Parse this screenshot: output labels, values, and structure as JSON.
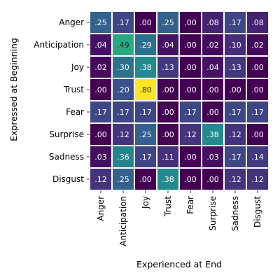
{
  "chart_data": {
    "type": "heatmap",
    "xlabel": "Experienced at End",
    "ylabel": "Expressed at Beginning",
    "x_categories": [
      "Anger",
      "Anticipation",
      "Joy",
      "Trust",
      "Fear",
      "Surprise",
      "Sadness",
      "Disgust"
    ],
    "y_categories": [
      "Anger",
      "Anticipation",
      "Joy",
      "Trust",
      "Fear",
      "Surprise",
      "Sadness",
      "Disgust"
    ],
    "values": [
      [
        0.25,
        0.17,
        0.0,
        0.25,
        0.0,
        0.08,
        0.17,
        0.08
      ],
      [
        0.04,
        0.49,
        0.29,
        0.04,
        0.0,
        0.02,
        0.1,
        0.02
      ],
      [
        0.02,
        0.3,
        0.38,
        0.13,
        0.0,
        0.04,
        0.13,
        0.0
      ],
      [
        0.0,
        0.2,
        0.8,
        0.0,
        0.0,
        0.0,
        0.0,
        0.0
      ],
      [
        0.17,
        0.17,
        0.17,
        0.0,
        0.17,
        0.0,
        0.17,
        0.17
      ],
      [
        0.0,
        0.12,
        0.25,
        0.0,
        0.12,
        0.38,
        0.12,
        0.0
      ],
      [
        0.03,
        0.36,
        0.17,
        0.11,
        0.0,
        0.03,
        0.17,
        0.14
      ],
      [
        0.12,
        0.25,
        0.0,
        0.38,
        0.0,
        0.0,
        0.12,
        0.12
      ]
    ],
    "labels": [
      [
        ".25",
        ".17",
        ".00",
        ".25",
        ".00",
        ".08",
        ".17",
        ".08"
      ],
      [
        ".04",
        ".49",
        ".29",
        ".04",
        ".00",
        ".02",
        ".10",
        ".02"
      ],
      [
        ".02",
        ".30",
        ".38",
        ".13",
        ".00",
        ".04",
        ".13",
        ".00"
      ],
      [
        ".00",
        ".20",
        ".80",
        ".00",
        ".00",
        ".00",
        ".00",
        ".00"
      ],
      [
        ".17",
        ".17",
        ".17",
        ".00",
        ".17",
        ".00",
        ".17",
        ".17"
      ],
      [
        ".00",
        ".12",
        ".25",
        ".00",
        ".12",
        ".38",
        ".12",
        ".00"
      ],
      [
        ".03",
        ".36",
        ".17",
        ".11",
        ".00",
        ".03",
        ".17",
        ".14"
      ],
      [
        ".12",
        ".25",
        ".00",
        ".38",
        ".00",
        ".00",
        ".12",
        ".12"
      ]
    ],
    "colormap": "viridis",
    "vmin": 0.0,
    "vmax": 0.8,
    "colorbar": false,
    "grid": false,
    "cell_border_color": "#ffffff",
    "label_color_light": "#ffffff",
    "label_color_dark": "#262626"
  }
}
